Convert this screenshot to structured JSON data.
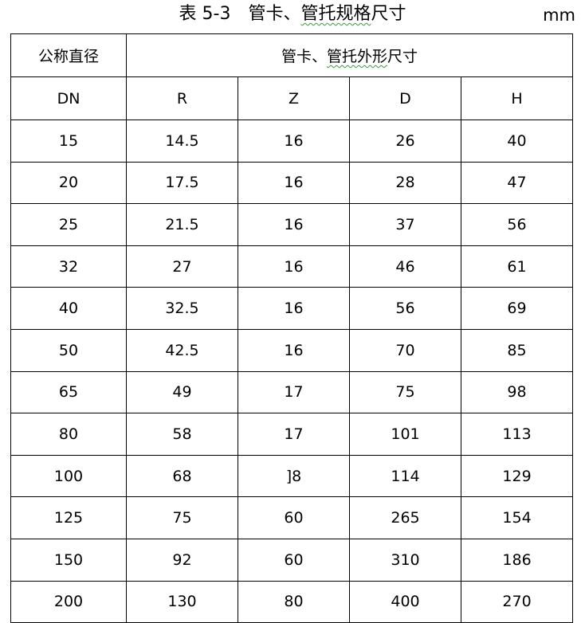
{
  "title": {
    "prefix": "表 5-3　管卡、",
    "underlined": "管托规格",
    "suffix": "尺寸"
  },
  "unit": "mm",
  "header": {
    "col0": "公称直径",
    "group": {
      "prefix": "管卡、",
      "underlined": "管托外形",
      "suffix": "尺寸"
    },
    "sub": [
      "DN",
      "R",
      "Z",
      "D",
      "H"
    ]
  },
  "rows": [
    [
      "15",
      "14.5",
      "16",
      "26",
      "40"
    ],
    [
      "20",
      "17.5",
      "16",
      "28",
      "47"
    ],
    [
      "25",
      "21.5",
      "16",
      "37",
      "56"
    ],
    [
      "32",
      "27",
      "16",
      "46",
      "61"
    ],
    [
      "40",
      "32.5",
      "16",
      "56",
      "69"
    ],
    [
      "50",
      "42.5",
      "16",
      "70",
      "85"
    ],
    [
      "65",
      "49",
      "17",
      "75",
      "98"
    ],
    [
      "80",
      "58",
      "17",
      "101",
      "113"
    ],
    [
      "100",
      "68",
      "]8",
      "114",
      "129"
    ],
    [
      "125",
      "75",
      "60",
      "265",
      "154"
    ],
    [
      "150",
      "92",
      "60",
      "310",
      "186"
    ],
    [
      "200",
      "130",
      "80",
      "400",
      "270"
    ]
  ]
}
